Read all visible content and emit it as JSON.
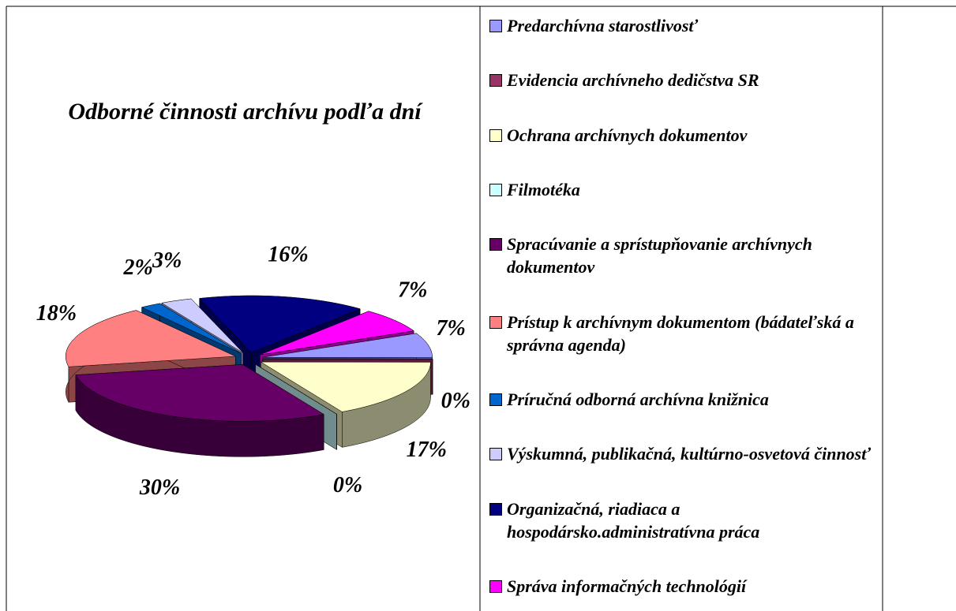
{
  "chart_data": {
    "type": "pie3d",
    "title": "Odborné činnosti archívu podľa dní",
    "categories": [
      "Predarchívna starostlivosť",
      "Evidencia archívneho dedičstva SR",
      "Ochrana archívnych dokumentov",
      "Filmotéka",
      "Spracúvanie a sprístupňovanie archívnych dokumentov",
      "Prístup k archívnym dokumentom (bádateľská a správna agenda)",
      "Príručná odborná archívna knižnica",
      "Výskumná, publikačná, kultúrno-osvetová činnosť",
      "Organizačná, riadiaca a hospodársko.administratívna práca",
      "Správa informačných technológií"
    ],
    "values": [
      7,
      0,
      17,
      0,
      30,
      18,
      2,
      3,
      16,
      7
    ],
    "value_labels": [
      "7%",
      "0%",
      "17%",
      "0%",
      "30%",
      "18%",
      "2%",
      "3%",
      "16%",
      "7%"
    ],
    "colors": [
      "#9999ff",
      "#993366",
      "#ffffcc",
      "#ccffff",
      "#660066",
      "#ff8080",
      "#0066cc",
      "#ccccff",
      "#000080",
      "#ff00ff"
    ],
    "legend": "right"
  }
}
